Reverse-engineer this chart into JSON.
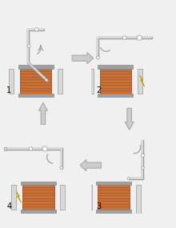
{
  "background_color": "#f0f0f0",
  "coil_color": "#c87137",
  "coil_lines_color": "#a0522d",
  "frame_color": "#d8d8d8",
  "frame_edge": "#999999",
  "cap_color": "#a0a0a0",
  "cap_edge": "#888888",
  "arrow_fill": "#cccccc",
  "arrow_edge": "#aaaaaa",
  "lightning_color": "#f5c400",
  "lightning_edge": "#b8960a",
  "step_labels": [
    "1",
    "2",
    "3",
    "4"
  ],
  "label_fontsize": 7
}
